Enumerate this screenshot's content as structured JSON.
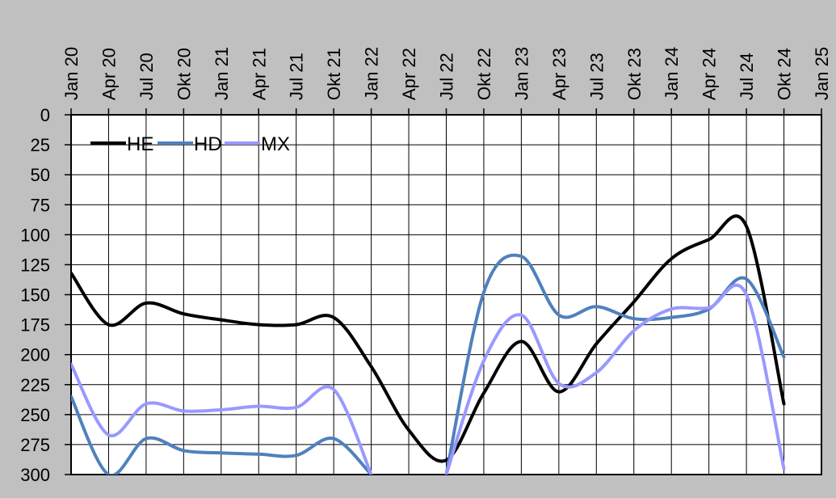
{
  "chart_data": {
    "type": "line",
    "title": "",
    "xlabel": "",
    "ylabel": "",
    "x_ticks": [
      "Jan 20",
      "Apr 20",
      "Jul 20",
      "Okt 20",
      "Jan 21",
      "Apr 21",
      "Jul 21",
      "Okt 21",
      "Jan 22",
      "Apr 22",
      "Jul 22",
      "Okt 22",
      "Jan 23",
      "Apr 23",
      "Jul 23",
      "Okt 23",
      "Jan 24",
      "Apr 24",
      "Jul 24",
      "Okt 24",
      "Jan 25"
    ],
    "x_range": [
      "2020-01",
      "2025-01"
    ],
    "x_axis_position": "top",
    "y_reversed": true,
    "ylim": [
      0,
      300
    ],
    "y_ticks": [
      0,
      25,
      50,
      75,
      100,
      125,
      150,
      175,
      200,
      225,
      250,
      275,
      300
    ],
    "grid": true,
    "legend_position": "top-left",
    "series": [
      {
        "name": "HE",
        "color": "#000000",
        "points": [
          [
            "2020-01",
            132
          ],
          [
            "2020-04",
            175
          ],
          [
            "2020-07",
            157
          ],
          [
            "2020-10",
            166
          ],
          [
            "2021-01",
            171
          ],
          [
            "2021-04",
            175
          ],
          [
            "2021-07",
            175
          ],
          [
            "2021-10",
            169
          ],
          [
            "2022-01",
            210
          ],
          [
            "2022-04",
            263
          ],
          [
            "2022-07",
            288
          ],
          [
            "2022-10",
            232
          ],
          [
            "2023-01",
            189
          ],
          [
            "2023-04",
            231
          ],
          [
            "2023-07",
            191
          ],
          [
            "2023-10",
            156
          ],
          [
            "2024-01",
            120
          ],
          [
            "2024-04",
            104
          ],
          [
            "2024-07",
            93
          ],
          [
            "2024-10",
            241
          ]
        ]
      },
      {
        "name": "HD",
        "color": "#4f81bd",
        "points": [
          [
            "2020-01",
            235
          ],
          [
            "2020-04",
            300
          ],
          [
            "2020-07",
            270
          ],
          [
            "2020-10",
            280
          ],
          [
            "2021-01",
            282
          ],
          [
            "2021-04",
            283
          ],
          [
            "2021-07",
            284
          ],
          [
            "2021-10",
            270
          ],
          [
            "2022-01",
            300
          ],
          [
            "2022-07",
            300
          ],
          [
            "2022-10",
            148
          ],
          [
            "2023-01",
            118
          ],
          [
            "2023-04",
            167
          ],
          [
            "2023-07",
            160
          ],
          [
            "2023-10",
            170
          ],
          [
            "2024-01",
            169
          ],
          [
            "2024-04",
            162
          ],
          [
            "2024-07",
            137
          ],
          [
            "2024-10",
            202
          ]
        ]
      },
      {
        "name": "MX",
        "color": "#9999ff",
        "points": [
          [
            "2020-01",
            208
          ],
          [
            "2020-04",
            267
          ],
          [
            "2020-07",
            241
          ],
          [
            "2020-10",
            247
          ],
          [
            "2021-01",
            246
          ],
          [
            "2021-04",
            243
          ],
          [
            "2021-07",
            244
          ],
          [
            "2021-10",
            229
          ],
          [
            "2022-01",
            300
          ],
          [
            "2022-07",
            300
          ],
          [
            "2022-10",
            205
          ],
          [
            "2023-01",
            167
          ],
          [
            "2023-04",
            224
          ],
          [
            "2023-07",
            215
          ],
          [
            "2023-10",
            180
          ],
          [
            "2024-01",
            162
          ],
          [
            "2024-04",
            161
          ],
          [
            "2024-07",
            150
          ],
          [
            "2024-10",
            295
          ]
        ]
      }
    ]
  }
}
